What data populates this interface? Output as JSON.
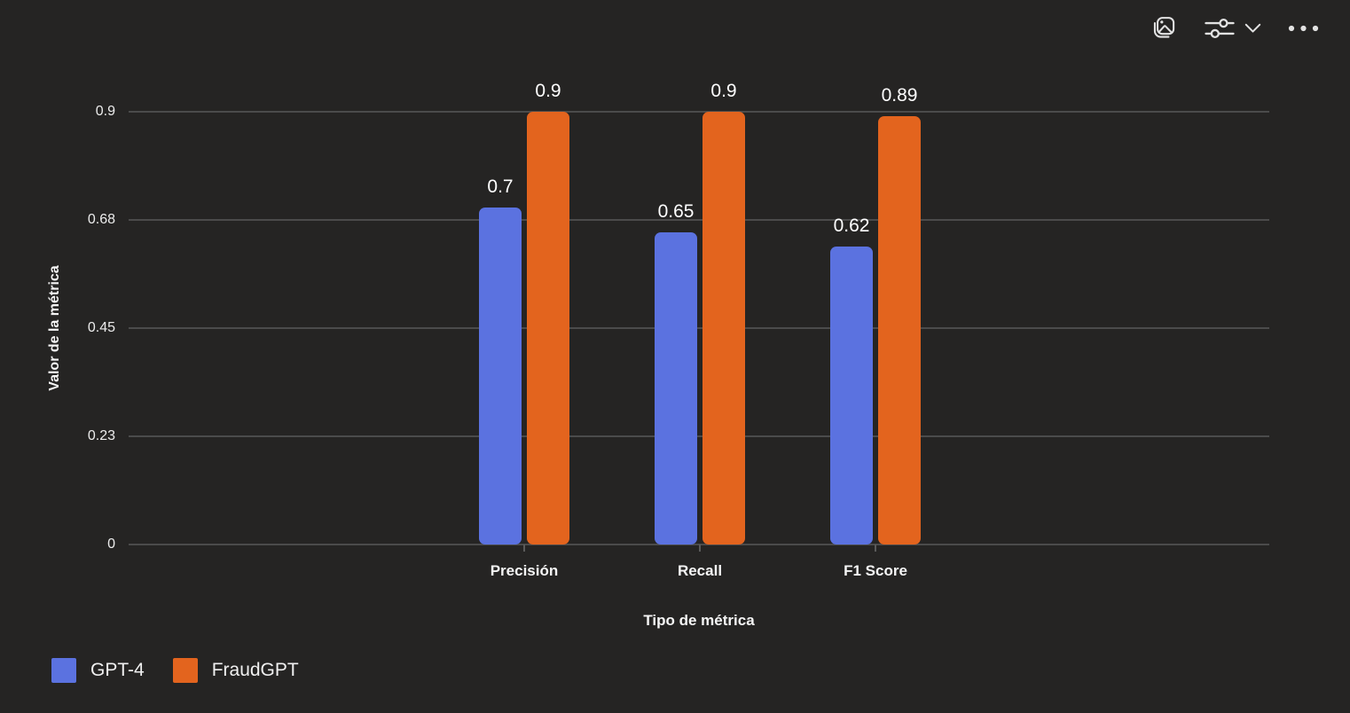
{
  "header": {
    "icons": [
      {
        "name": "image-icon"
      },
      {
        "name": "filters-icon"
      },
      {
        "name": "chevron-down-icon"
      },
      {
        "name": "more-options-icon"
      }
    ]
  },
  "colors": {
    "background": "#252423",
    "gridline": "#4b4b4b",
    "text": "#ffffff",
    "icon": "#e2e2e2",
    "series_blue": "#5B72E0",
    "series_orange": "#E3641E"
  },
  "chart_data": {
    "type": "bar",
    "title": "",
    "categories": [
      "Precisión",
      "Recall",
      "F1 Score"
    ],
    "series": [
      {
        "name": "GPT-4",
        "color": "#5B72E0",
        "values": [
          0.7,
          0.65,
          0.62
        ]
      },
      {
        "name": "FraudGPT",
        "color": "#E3641E",
        "values": [
          0.9,
          0.9,
          0.89
        ]
      }
    ],
    "data_labels": [
      [
        "0.7",
        "0.65",
        "0.62"
      ],
      [
        "0.9",
        "0.9",
        "0.89"
      ]
    ],
    "xlabel": "Tipo de métrica",
    "ylabel": "Valor de la métrica",
    "ylim": [
      0,
      0.9
    ],
    "yticks": [
      {
        "value": 0,
        "label": "0"
      },
      {
        "value": 0.225,
        "label": "0.23"
      },
      {
        "value": 0.45,
        "label": "0.45"
      },
      {
        "value": 0.675,
        "label": "0.68"
      },
      {
        "value": 0.9,
        "label": "0.9"
      }
    ],
    "grid": true,
    "legend_position": "bottom-left"
  }
}
